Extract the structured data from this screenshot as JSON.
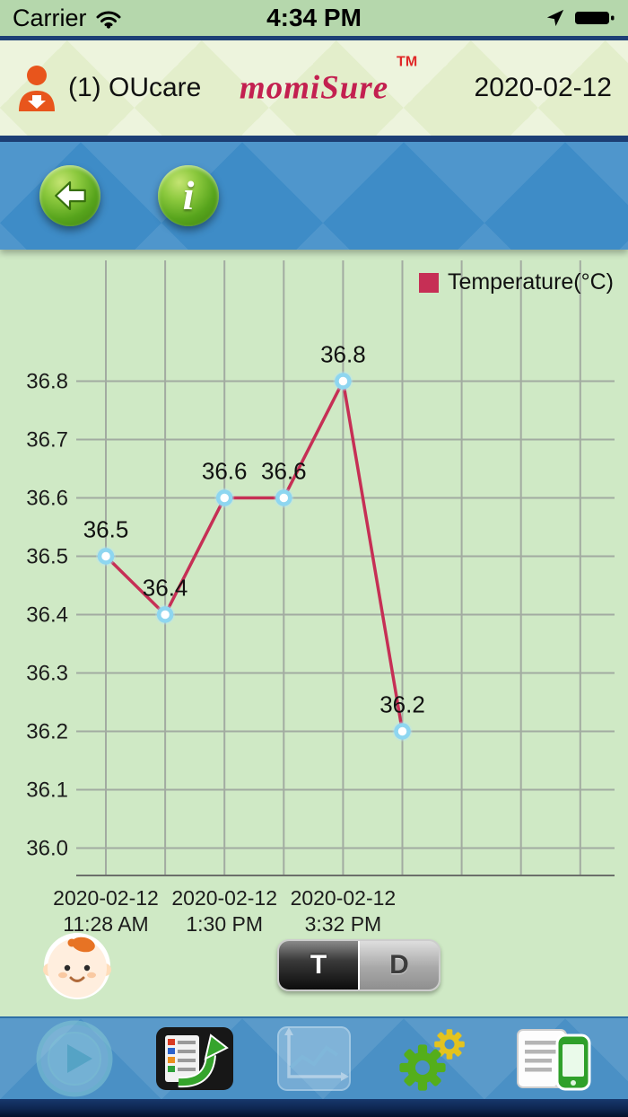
{
  "status_bar": {
    "carrier": "Carrier",
    "time": "4:34 PM"
  },
  "header": {
    "patient": "(1) OUcare",
    "logo": "momiSure",
    "trademark": "TM",
    "date": "2020-02-12"
  },
  "toolbar": {
    "info_glyph": "i"
  },
  "chart_data": {
    "type": "line",
    "title": "",
    "legend": {
      "label": "Temperature(°C)",
      "swatch_color": "#c62f55",
      "position": "top-right"
    },
    "series": [
      {
        "name": "Temperature(°C)",
        "color": "#c62f55",
        "points": [
          {
            "x_gridline": 0,
            "value": 36.5,
            "label": "36.5"
          },
          {
            "x_gridline": 1,
            "value": 36.4,
            "label": "36.4"
          },
          {
            "x_gridline": 2,
            "value": 36.6,
            "label": "36.6"
          },
          {
            "x_gridline": 3,
            "value": 36.6,
            "label": "36.6"
          },
          {
            "x_gridline": 4,
            "value": 36.8,
            "label": "36.8"
          },
          {
            "x_gridline": 5,
            "value": 36.2,
            "label": "36.2"
          }
        ]
      }
    ],
    "y_ticks": [
      {
        "value": 36.8,
        "label": "36.8"
      },
      {
        "value": 36.7,
        "label": "36.7"
      },
      {
        "value": 36.6,
        "label": "36.6"
      },
      {
        "value": 36.5,
        "label": "36.5"
      },
      {
        "value": 36.4,
        "label": "36.4"
      },
      {
        "value": 36.3,
        "label": "36.3"
      },
      {
        "value": 36.2,
        "label": "36.2"
      },
      {
        "value": 36.1,
        "label": "36.1"
      },
      {
        "value": 36.0,
        "label": "36.0"
      }
    ],
    "ylim": [
      36.0,
      36.8
    ],
    "x_ticks": [
      {
        "gridline": 0,
        "line1": "2020-02-12",
        "line2": "11:28 AM"
      },
      {
        "gridline": 2,
        "line1": "2020-02-12",
        "line2": "1:30 PM"
      },
      {
        "gridline": 4,
        "line1": "2020-02-12",
        "line2": "3:32 PM"
      }
    ],
    "vertical_gridline_count": 9,
    "grid": true,
    "marker": {
      "fill": "#ffffff",
      "stroke": "#8ed6f0"
    }
  },
  "controls": {
    "toggle": {
      "left": "T",
      "right": "D",
      "selected": "T"
    }
  },
  "bottom_nav": {
    "buttons": [
      {
        "icon": "play-icon",
        "enabled": false
      },
      {
        "icon": "report-export-icon",
        "enabled": true
      },
      {
        "icon": "trend-chart-icon",
        "enabled": false
      },
      {
        "icon": "settings-gears-icon",
        "enabled": true
      },
      {
        "icon": "device-report-icon",
        "enabled": true
      }
    ]
  },
  "icons": {
    "status": [
      "wifi-icon",
      "location-arrow-icon",
      "battery-icon"
    ],
    "header": [
      "user-person-icon"
    ],
    "toolbar": [
      "back-arrow-icon",
      "info-icon"
    ],
    "footer": [
      "baby-avatar-icon"
    ]
  },
  "colors": {
    "chart_line": "#c62f55",
    "chart_bg": "#cfe9c5",
    "toolbar_blue": "#3e8cc7",
    "nav_blue": "#4a90c5",
    "header_bg": "#e3eecb",
    "status_bg": "#b5d7ac",
    "navy_border": "#1d3f76",
    "button_green": "#57a41c"
  }
}
